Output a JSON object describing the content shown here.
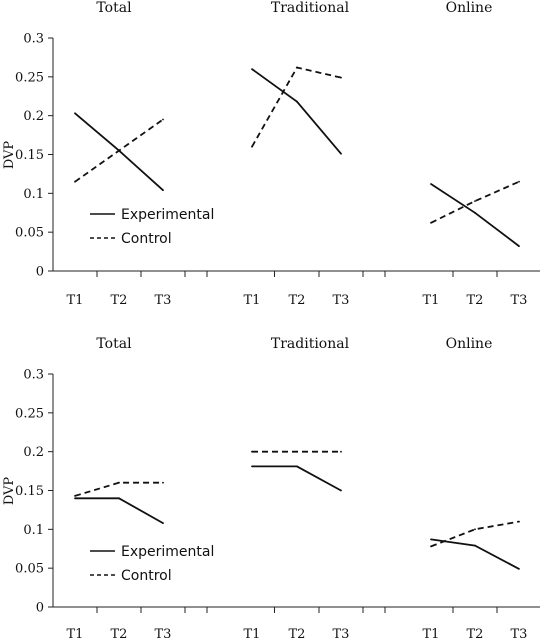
{
  "chart_data": [
    {
      "type": "line",
      "ylabel": "DVP",
      "ylim": [
        0,
        0.3
      ],
      "yticks": [
        "0",
        "0.05",
        "0.1",
        "0.15",
        "0.2",
        "0.25",
        "0.3"
      ],
      "ytick_values": [
        0,
        0.05,
        0.1,
        0.15,
        0.2,
        0.25,
        0.3
      ],
      "legend": {
        "position": "lower-left",
        "entries": [
          "Experimental",
          "Control"
        ]
      },
      "panels": [
        {
          "title": "Total",
          "categories": [
            "T1",
            "T2",
            "T3"
          ],
          "series": [
            {
              "name": "Experimental",
              "style": "solid",
              "values": [
                0.203,
                0.155,
                0.104
              ]
            },
            {
              "name": "Control",
              "style": "dashed",
              "values": [
                0.115,
                0.155,
                0.195
              ]
            }
          ]
        },
        {
          "title": "Traditional",
          "categories": [
            "T1",
            "T2",
            "T3"
          ],
          "series": [
            {
              "name": "Experimental",
              "style": "solid",
              "values": [
                0.26,
                0.218,
                0.151
              ]
            },
            {
              "name": "Control",
              "style": "dashed",
              "values": [
                0.16,
                0.262,
                0.249
              ]
            }
          ]
        },
        {
          "title": "Online",
          "categories": [
            "T1",
            "T2",
            "T3"
          ],
          "series": [
            {
              "name": "Experimental",
              "style": "solid",
              "values": [
                0.112,
                0.075,
                0.032
              ]
            },
            {
              "name": "Control",
              "style": "dashed",
              "values": [
                0.062,
                0.09,
                0.115
              ]
            }
          ]
        }
      ]
    },
    {
      "type": "line",
      "ylabel": "DVP",
      "ylim": [
        0,
        0.3
      ],
      "yticks": [
        "0",
        "0.05",
        "0.1",
        "0.15",
        "0.2",
        "0.25",
        "0.3"
      ],
      "ytick_values": [
        0,
        0.05,
        0.1,
        0.15,
        0.2,
        0.25,
        0.3
      ],
      "legend": {
        "position": "lower-left",
        "entries": [
          "Experimental",
          "Control"
        ]
      },
      "panels": [
        {
          "title": "Total",
          "categories": [
            "T1",
            "T2",
            "T3"
          ],
          "series": [
            {
              "name": "Experimental",
              "style": "solid",
              "values": [
                0.14,
                0.14,
                0.108
              ]
            },
            {
              "name": "Control",
              "style": "dashed",
              "values": [
                0.143,
                0.16,
                0.16
              ]
            }
          ]
        },
        {
          "title": "Traditional",
          "categories": [
            "T1",
            "T2",
            "T3"
          ],
          "series": [
            {
              "name": "Experimental",
              "style": "solid",
              "values": [
                0.181,
                0.181,
                0.15
              ]
            },
            {
              "name": "Control",
              "style": "dashed",
              "values": [
                0.2,
                0.2,
                0.2
              ]
            }
          ]
        },
        {
          "title": "Online",
          "categories": [
            "T1",
            "T2",
            "T3"
          ],
          "series": [
            {
              "name": "Experimental",
              "style": "solid",
              "values": [
                0.087,
                0.079,
                0.049
              ]
            },
            {
              "name": "Control",
              "style": "dashed",
              "values": [
                0.078,
                0.1,
                0.11
              ]
            }
          ]
        }
      ]
    }
  ]
}
